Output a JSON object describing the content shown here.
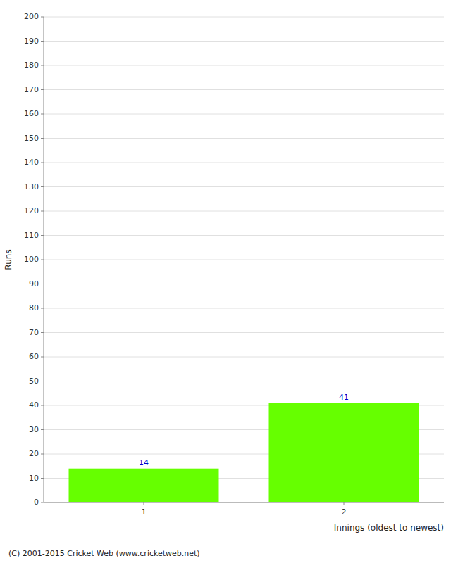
{
  "chart_data": {
    "type": "bar",
    "categories": [
      "1",
      "2"
    ],
    "values": [
      14,
      41
    ],
    "color": "#66ff00",
    "xlabel": "Innings (oldest to newest)",
    "ylabel": "Runs",
    "ylim": [
      0,
      200
    ],
    "yticks": [
      0,
      10,
      20,
      30,
      40,
      50,
      60,
      70,
      80,
      90,
      100,
      110,
      120,
      130,
      140,
      150,
      160,
      170,
      180,
      190,
      200
    ],
    "grid": true,
    "data_labels": true,
    "annotations": [
      "(C) 2001-2015 Cricket Web (www.cricketweb.net)"
    ]
  }
}
